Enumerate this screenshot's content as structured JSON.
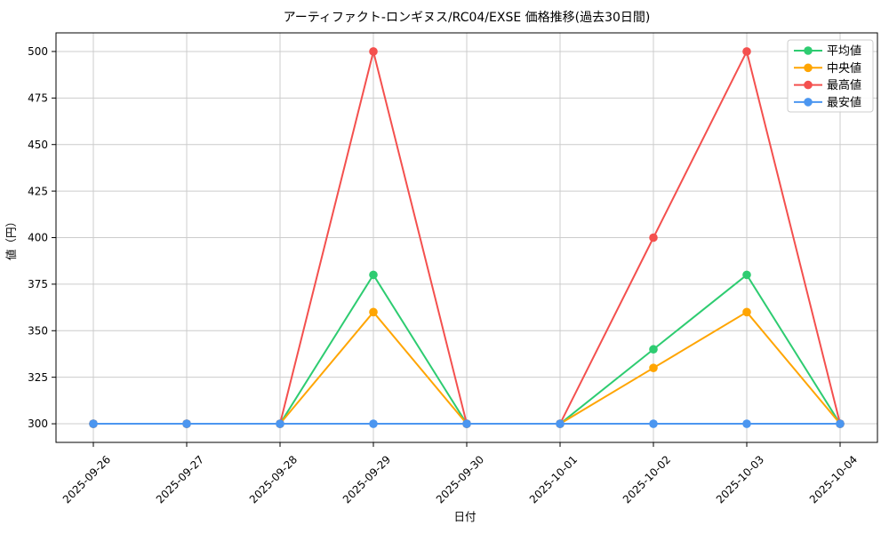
{
  "figure": {
    "background": "#ffffff",
    "plot_background": "#ffffff",
    "grid_color": "#cccccc",
    "spine_color": "#000000",
    "legend_border_color": "#cccccc",
    "legend_background": "#ffffff"
  },
  "chart_data": {
    "type": "line",
    "title": "アーティファクト-ロンギヌス/RC04/EXSE 価格推移(過去30日間)",
    "xlabel": "日付",
    "ylabel": "値（円）",
    "x": [
      "2025-09-26",
      "2025-09-27",
      "2025-09-28",
      "2025-09-29",
      "2025-09-30",
      "2025-10-01",
      "2025-10-02",
      "2025-10-03",
      "2025-10-04"
    ],
    "series": [
      {
        "key": "average",
        "name": "平均値",
        "color": "#2ecc71",
        "values": [
          300,
          300,
          300,
          380,
          300,
          300,
          340,
          380,
          300
        ]
      },
      {
        "key": "median",
        "name": "中央値",
        "color": "#ffa502",
        "values": [
          300,
          300,
          300,
          360,
          300,
          300,
          330,
          360,
          300
        ]
      },
      {
        "key": "max",
        "name": "最高値",
        "color": "#f4504e",
        "values": [
          300,
          300,
          300,
          500,
          300,
          300,
          400,
          500,
          300
        ]
      },
      {
        "key": "min",
        "name": "最安値",
        "color": "#4b96f0",
        "values": [
          300,
          300,
          300,
          300,
          300,
          300,
          300,
          300,
          300
        ]
      }
    ],
    "ylim": [
      290,
      510
    ],
    "yticks": [
      300,
      325,
      350,
      375,
      400,
      425,
      450,
      475,
      500
    ],
    "grid": true,
    "legend_position": "upper right",
    "marker": "circle",
    "x_tick_rotation_deg": 45
  }
}
